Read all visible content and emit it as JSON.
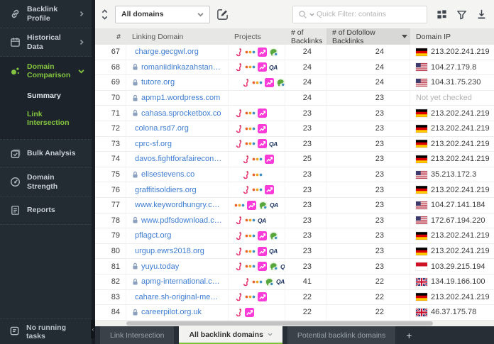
{
  "sidebar": {
    "items": [
      {
        "label": "Backlink Profile",
        "icon": "link-icon",
        "chevron": "right"
      },
      {
        "label": "Historical Data",
        "icon": "calendar-icon",
        "chevron": "right"
      },
      {
        "label": "Domain Comparison",
        "icon": "bubbles-icon",
        "chevron": "down",
        "active": true,
        "children": [
          "Summary",
          "Link Intersection"
        ],
        "active_child": "Link Intersection"
      },
      {
        "label": "Bulk Analysis",
        "icon": "checklist-icon"
      },
      {
        "label": "Domain Strength",
        "icon": "gauge-icon"
      },
      {
        "label": "Reports",
        "icon": "report-icon"
      }
    ],
    "status": {
      "label": "No running tasks",
      "icon": "tasks-icon"
    }
  },
  "toolbar": {
    "domain_selector": {
      "value": "All domains"
    },
    "quick_filter": {
      "placeholder": "Quick Filter: contains"
    },
    "icons": [
      "sort-updown-icon",
      "edit-icon",
      "columns-icon",
      "filter-icon",
      "download-icon"
    ]
  },
  "table": {
    "columns": [
      "#",
      "Linking Domain",
      "Projects",
      "# of Backlinks",
      "# of Dofollow Backlinks",
      "Domain IP"
    ],
    "sorted_column": "# of Dofollow Backlinks",
    "sort_direction": "desc",
    "not_checked_label": "Not yet checked",
    "rows": [
      {
        "num": 67,
        "lock": false,
        "domain": "charge.gecgwl.org",
        "projects": [
          "flamingo",
          "dots",
          "chart",
          "globe"
        ],
        "indent": false,
        "backlinks": 24,
        "dofollow": 24,
        "flag": "de",
        "ip": "213.202.241.219"
      },
      {
        "num": 68,
        "lock": true,
        "domain": "romaniidinkazahstan.info",
        "projects": [
          "flamingo",
          "dots",
          "chart",
          "qa"
        ],
        "indent": false,
        "backlinks": 24,
        "dofollow": 24,
        "flag": "us",
        "ip": "104.27.179.8"
      },
      {
        "num": 69,
        "lock": true,
        "domain": "tutore.org",
        "projects": [
          "flamingo",
          "dots",
          "chart",
          "globe"
        ],
        "indent": true,
        "backlinks": 24,
        "dofollow": 24,
        "flag": "us",
        "ip": "104.31.75.230"
      },
      {
        "num": 70,
        "lock": true,
        "domain": "apmp1.wordpress.com",
        "projects": [],
        "indent": false,
        "backlinks": 24,
        "dofollow": 23,
        "flag": null,
        "ip": null
      },
      {
        "num": 71,
        "lock": true,
        "domain": "cahasa.sprocketbox.co",
        "projects": [
          "flamingo",
          "dots",
          "chart"
        ],
        "indent": false,
        "backlinks": 23,
        "dofollow": 23,
        "flag": "de",
        "ip": "213.202.241.219"
      },
      {
        "num": 72,
        "lock": false,
        "domain": "colona.rsd7.org",
        "projects": [
          "flamingo",
          "dots",
          "chart"
        ],
        "indent": false,
        "backlinks": 23,
        "dofollow": 23,
        "flag": "de",
        "ip": "213.202.241.219"
      },
      {
        "num": 73,
        "lock": false,
        "domain": "cprc-sf.org",
        "projects": [
          "flamingo",
          "dots",
          "chart",
          "qa"
        ],
        "indent": false,
        "backlinks": 23,
        "dofollow": 23,
        "flag": "de",
        "ip": "213.202.241.219"
      },
      {
        "num": 74,
        "lock": false,
        "domain": "davos.fightforafaireconomy.org",
        "projects": [
          "flamingo",
          "dots",
          "chart"
        ],
        "indent": true,
        "backlinks": 25,
        "dofollow": 23,
        "flag": "de",
        "ip": "213.202.241.219"
      },
      {
        "num": 75,
        "lock": true,
        "domain": "elisestevens.co",
        "projects": [
          "flamingo",
          "dots"
        ],
        "indent": true,
        "backlinks": 23,
        "dofollow": 23,
        "flag": "us",
        "ip": "35.213.172.3"
      },
      {
        "num": 76,
        "lock": false,
        "domain": "graffitisoldiers.org",
        "projects": [
          "flamingo",
          "dots",
          "chart"
        ],
        "indent": true,
        "backlinks": 23,
        "dofollow": 23,
        "flag": "de",
        "ip": "213.202.241.219"
      },
      {
        "num": 77,
        "lock": false,
        "domain": "www.keywordhungry.com",
        "projects": [
          "dots",
          "chart",
          "globe",
          "qa"
        ],
        "indent": false,
        "backlinks": 23,
        "dofollow": 23,
        "flag": "us",
        "ip": "104.27.141.184"
      },
      {
        "num": 78,
        "lock": true,
        "domain": "www.pdfsdownload.com",
        "projects": [
          "flamingo",
          "dots",
          "qa"
        ],
        "indent": false,
        "backlinks": 23,
        "dofollow": 23,
        "flag": "us",
        "ip": "172.67.194.220"
      },
      {
        "num": 79,
        "lock": false,
        "domain": "pflagct.org",
        "projects": [
          "flamingo",
          "dots",
          "chart",
          "globe"
        ],
        "indent": false,
        "backlinks": 23,
        "dofollow": 23,
        "flag": "de",
        "ip": "213.202.241.219"
      },
      {
        "num": 80,
        "lock": false,
        "domain": "urgup.ewrs2018.org",
        "projects": [
          "flamingo",
          "dots",
          "chart",
          "qa"
        ],
        "indent": false,
        "backlinks": 23,
        "dofollow": 23,
        "flag": "de",
        "ip": "213.202.241.219"
      },
      {
        "num": 81,
        "lock": true,
        "domain": "yuyu.today",
        "projects": [
          "flamingo",
          "dots",
          "chart",
          "globe",
          "qa"
        ],
        "indent": false,
        "backlinks": 23,
        "dofollow": 23,
        "flag": "id",
        "ip": "103.29.215.194"
      },
      {
        "num": 82,
        "lock": true,
        "domain": "apmg-international.com",
        "projects": [
          "flamingo",
          "dots",
          "globe",
          "qa"
        ],
        "indent": true,
        "backlinks": 41,
        "dofollow": 22,
        "flag": "gb",
        "ip": "134.19.166.100"
      },
      {
        "num": 83,
        "lock": false,
        "domain": "cahare.sh-original-media.com",
        "projects": [
          "flamingo",
          "dots",
          "chart"
        ],
        "indent": false,
        "backlinks": 22,
        "dofollow": 22,
        "flag": "de",
        "ip": "213.202.241.219"
      },
      {
        "num": 84,
        "lock": true,
        "domain": "careerpilot.org.uk",
        "projects": [
          "flamingo",
          "chart"
        ],
        "indent": false,
        "backlinks": 22,
        "dofollow": 22,
        "flag": "gb",
        "ip": "46.37.175.78"
      }
    ]
  },
  "tabs": {
    "items": [
      "Link Intersection",
      "All backlink domains",
      "Potential backlink domains"
    ],
    "active": "All backlink domains",
    "add_label": "+"
  },
  "colors": {
    "accent_green": "#84c340",
    "sidebar_bg": "#232b33",
    "link_blue": "#3e7dd1",
    "tabbar_bg": "#272e35"
  }
}
